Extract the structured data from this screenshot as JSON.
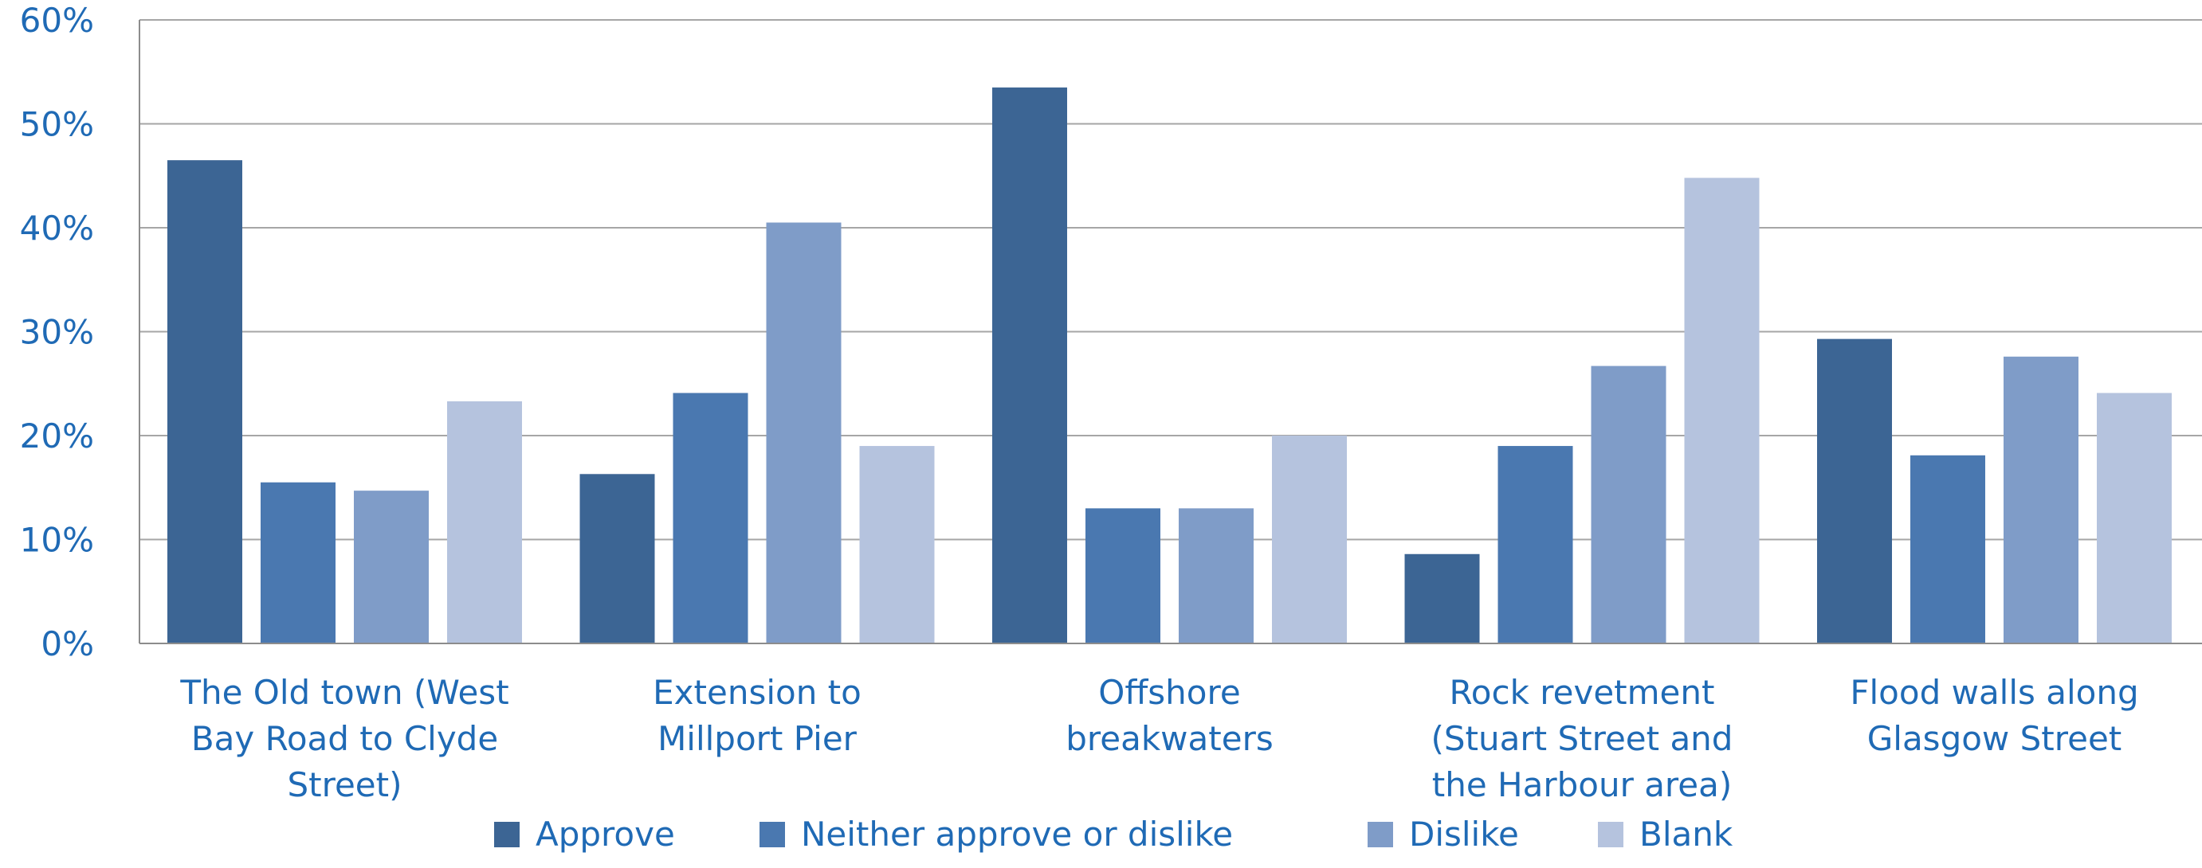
{
  "chart_data": {
    "type": "bar",
    "categories": [
      [
        "The Old town (West",
        "Bay Road to Clyde",
        "Street)"
      ],
      [
        "Extension to",
        "Millport Pier"
      ],
      [
        "Offshore",
        "breakwaters"
      ],
      [
        "Rock revetment",
        "(Stuart Street and",
        "the Harbour area)"
      ],
      [
        "Flood walls along",
        "Glasgow Street"
      ]
    ],
    "series": [
      {
        "name": "Approve",
        "color": "#3c6594",
        "values": [
          46.5,
          16.3,
          53.5,
          8.6,
          29.3
        ]
      },
      {
        "name": "Neither approve or dislike",
        "color": "#4a78b0",
        "values": [
          15.5,
          24.1,
          13.0,
          19.0,
          18.1
        ]
      },
      {
        "name": "Dislike",
        "color": "#7f9cc8",
        "values": [
          14.7,
          40.5,
          13.0,
          26.7,
          27.6
        ]
      },
      {
        "name": "Blank",
        "color": "#b5c3de",
        "values": [
          23.3,
          19.0,
          20.0,
          44.8,
          24.1
        ]
      }
    ],
    "ylim": [
      0,
      60
    ],
    "yticks": [
      "0%",
      "10%",
      "20%",
      "30%",
      "40%",
      "50%",
      "60%"
    ],
    "grid": true,
    "legend_position": "bottom",
    "title": "",
    "xlabel": "",
    "ylabel": ""
  },
  "colors": {
    "text": "#1f6ab5",
    "grid": "#a6a6a6",
    "axis": "#8c8c8c"
  }
}
